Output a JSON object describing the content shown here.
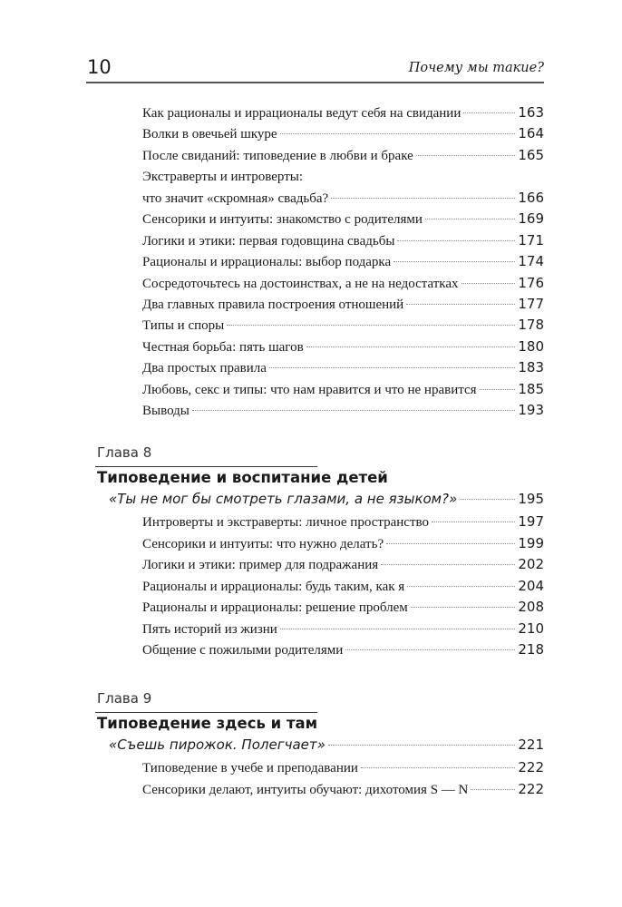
{
  "header": {
    "page_number": "10",
    "running_title": "Почему мы такие?"
  },
  "top_entries": [
    {
      "title": "Как рационалы и иррационалы ведут себя на свидании",
      "page": "163"
    },
    {
      "title": "Волки в овечьей шкуре",
      "page": "164"
    },
    {
      "title": "После свиданий: типоведение в любви и браке",
      "page": "165"
    },
    {
      "title": "Экстраверты и интроверты:",
      "title2": "что значит «скромная» свадьба?",
      "page": "166"
    },
    {
      "title": "Сенсорики и интуиты: знакомство с родителями",
      "page": "169"
    },
    {
      "title": "Логики и этики: первая годовщина свадьбы",
      "page": "171"
    },
    {
      "title": "Рационалы и иррационалы: выбор подарка",
      "page": "174"
    },
    {
      "title": "Сосредоточьтесь на достоинствах, а не на недостатках",
      "page": "176"
    },
    {
      "title": "Два главных правила построения отношений",
      "page": "177"
    },
    {
      "title": "Типы и споры",
      "page": "178"
    },
    {
      "title": "Честная борьба: пять шагов",
      "page": "180"
    },
    {
      "title": "Два простых правила",
      "page": "183"
    },
    {
      "title": "Любовь, секс и типы: что нам нравится и что не нравится",
      "page": "185"
    },
    {
      "title": "Выводы",
      "page": "193"
    }
  ],
  "chapters": [
    {
      "label": "Глава 8",
      "title": "Типоведение и воспитание детей",
      "epigraph": {
        "title": "«Ты не мог бы смотреть глазами, а не языком?»",
        "page": "195"
      },
      "entries": [
        {
          "title": "Интроверты и экстраверты: личное пространство",
          "page": "197"
        },
        {
          "title": "Сенсорики и интуиты: что нужно делать?",
          "page": "199"
        },
        {
          "title": "Логики и этики: пример для подражания",
          "page": "202"
        },
        {
          "title": "Рационалы и иррационалы: будь таким, как я",
          "page": "204"
        },
        {
          "title": "Рационалы и иррационалы: решение проблем",
          "page": "208"
        },
        {
          "title": "Пять историй из жизни",
          "page": "210"
        },
        {
          "title": "Общение с пожилыми родителями",
          "page": "218"
        }
      ]
    },
    {
      "label": "Глава 9",
      "title": "Типоведение здесь и там",
      "epigraph": {
        "title": "«Съешь пирожок. Полегчает»",
        "page": "221"
      },
      "entries": [
        {
          "title": "Типоведение в учебе и преподавании",
          "page": "222"
        },
        {
          "title": "Сенсорики делают, интуиты обучают: дихотомия S — N",
          "page": "222"
        }
      ]
    }
  ]
}
